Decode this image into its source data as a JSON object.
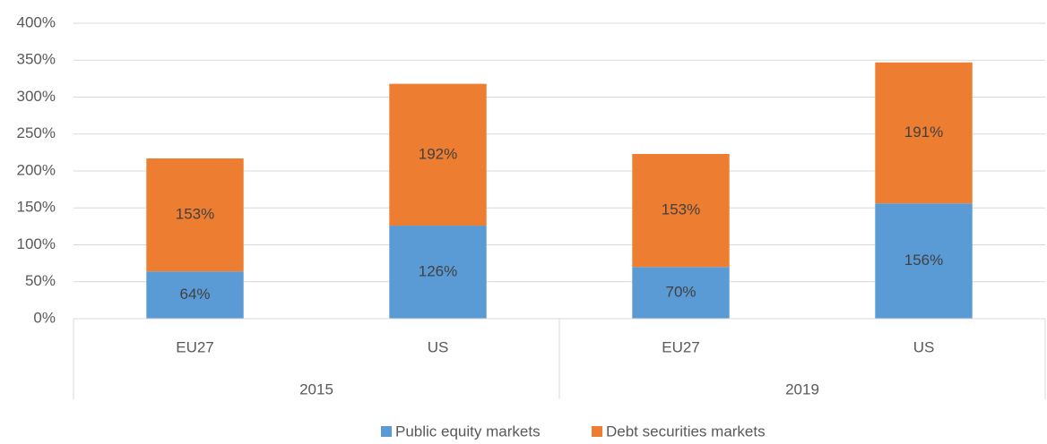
{
  "chart_data": {
    "type": "stacked_bar",
    "categories": [
      "EU27",
      "US",
      "EU27",
      "US"
    ],
    "category_groups": [
      "2015",
      "2019"
    ],
    "series": [
      {
        "name": "Public equity markets",
        "color": "#5b9bd5",
        "values": [
          64,
          126,
          70,
          156
        ],
        "value_labels": [
          "64%",
          "126%",
          "70%",
          "156%"
        ]
      },
      {
        "name": "Debt securities markets",
        "color": "#ed7d31",
        "values": [
          153,
          192,
          153,
          191
        ],
        "value_labels": [
          "153%",
          "192%",
          "153%",
          "191%"
        ]
      }
    ],
    "ylim": [
      0,
      400
    ],
    "yticks": [
      {
        "value": 0,
        "label": "0%"
      },
      {
        "value": 50,
        "label": "50%"
      },
      {
        "value": 100,
        "label": "100%"
      },
      {
        "value": 150,
        "label": "150%"
      },
      {
        "value": 200,
        "label": "200%"
      },
      {
        "value": 250,
        "label": "250%"
      },
      {
        "value": 300,
        "label": "300%"
      },
      {
        "value": 350,
        "label": "350%"
      },
      {
        "value": 400,
        "label": "400%"
      }
    ],
    "grid": true,
    "legend": "bottom"
  }
}
